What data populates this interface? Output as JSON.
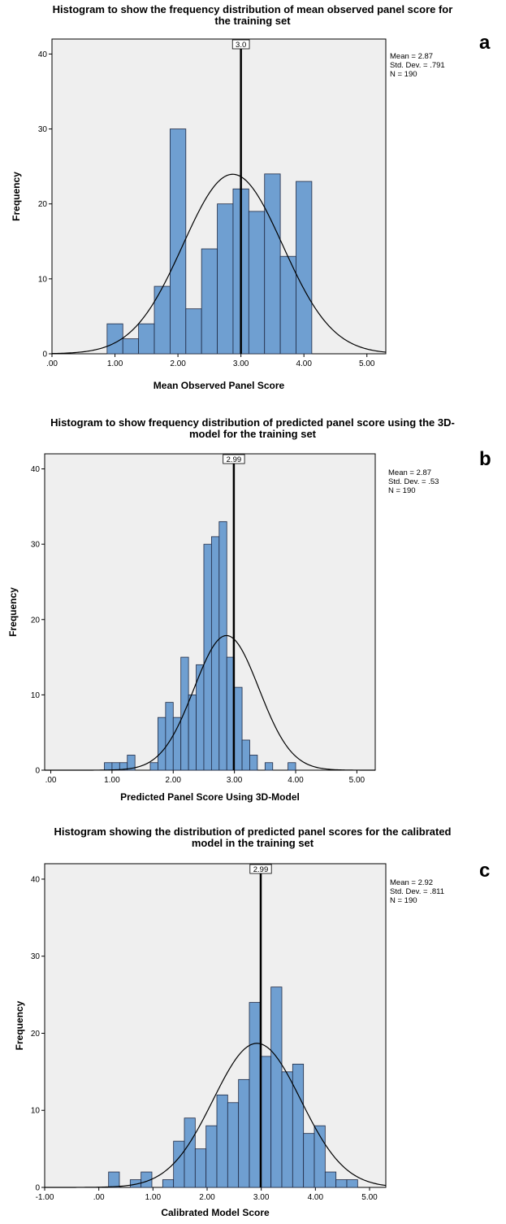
{
  "colors": {
    "bar_fill": "#6f9fd1",
    "bar_stroke": "#1f2a44",
    "plot_bg": "#efefef",
    "curve": "#000000",
    "mean_line": "#000000"
  },
  "chart_data": [
    {
      "type": "bar",
      "panel_label": "a",
      "title_lines": [
        "Histogram to show the frequency distribution of mean observed panel score for",
        "the training set"
      ],
      "xlabel": "Mean Observed Panel Score",
      "ylabel": "Frequency",
      "xlim": [
        0,
        5.3
      ],
      "ylim": [
        0,
        42
      ],
      "xticks": [
        0,
        1,
        2,
        3,
        4,
        5
      ],
      "xtick_labels": [
        ".00",
        "1.00",
        "2.00",
        "3.00",
        "4.00",
        "5.00"
      ],
      "yticks": [
        0,
        10,
        20,
        30,
        40
      ],
      "ytick_labels": [
        "0",
        "10",
        "20",
        "30",
        "40"
      ],
      "bin_edges": [
        0.875,
        1.125,
        1.375,
        1.625,
        1.875,
        2.125,
        2.375,
        2.625,
        2.875,
        3.125,
        3.375,
        3.625,
        3.875,
        4.125
      ],
      "values": [
        4,
        2,
        4,
        9,
        30,
        6,
        14,
        20,
        22,
        19,
        24,
        13,
        23
      ],
      "mean_line_x": 3.0,
      "mean_line_label": "3.0",
      "stats": [
        "Mean = 2.87",
        "Std. Dev. = .791",
        "N = 190"
      ],
      "normal_curve": {
        "mean": 2.87,
        "sd": 0.791,
        "n": 190,
        "binwidth": 0.25
      }
    },
    {
      "type": "bar",
      "panel_label": "b",
      "title_lines": [
        "Histogram to show frequency distribution of predicted panel score using the 3D-",
        "model for the training set"
      ],
      "xlabel": "Predicted Panel Score Using 3D-Model",
      "ylabel": "Frequency",
      "xlim": [
        -0.1,
        5.3
      ],
      "ylim": [
        0,
        42
      ],
      "xticks": [
        0,
        1,
        2,
        3,
        4,
        5
      ],
      "xtick_labels": [
        ".00",
        "1.00",
        "2.00",
        "3.00",
        "4.00",
        "5.00"
      ],
      "yticks": [
        0,
        10,
        20,
        30,
        40
      ],
      "ytick_labels": [
        "0",
        "10",
        "20",
        "30",
        "40"
      ],
      "bin_edges": [
        0.875,
        1.0,
        1.125,
        1.25,
        1.375,
        1.5,
        1.625,
        1.75,
        1.875,
        2.0,
        2.125,
        2.25,
        2.375,
        2.5,
        2.625,
        2.75,
        2.875,
        3.0,
        3.125,
        3.25,
        3.375,
        3.5,
        3.625,
        3.75,
        3.875,
        4.0
      ],
      "values": [
        1,
        1,
        1,
        2,
        0,
        0,
        1,
        7,
        9,
        7,
        15,
        10,
        14,
        30,
        31,
        33,
        15,
        11,
        4,
        2,
        0,
        1,
        0,
        0,
        1
      ],
      "mean_line_x": 2.99,
      "mean_line_label": "2.99",
      "stats": [
        "Mean = 2.87",
        "Std. Dev. = .53",
        "N = 190"
      ],
      "normal_curve": {
        "mean": 2.87,
        "sd": 0.53,
        "n": 190,
        "binwidth": 0.125
      }
    },
    {
      "type": "bar",
      "panel_label": "c",
      "title_lines": [
        "Histogram showing the distribution of predicted panel scores for the calibrated",
        "model in the training set"
      ],
      "xlabel": "Calibrated Model Score",
      "ylabel": "Frequency",
      "xlim": [
        -1.0,
        5.3
      ],
      "ylim": [
        0,
        42
      ],
      "xticks": [
        -1,
        0,
        1,
        2,
        3,
        4,
        5
      ],
      "xtick_labels": [
        "-1.00",
        ".00",
        "1.00",
        "2.00",
        "3.00",
        "4.00",
        "5.00"
      ],
      "yticks": [
        0,
        10,
        20,
        30,
        40
      ],
      "ytick_labels": [
        "0",
        "10",
        "20",
        "30",
        "40"
      ],
      "bin_edges": [
        0.18,
        0.38,
        0.58,
        0.78,
        0.98,
        1.18,
        1.38,
        1.58,
        1.78,
        1.98,
        2.18,
        2.38,
        2.58,
        2.78,
        2.98,
        3.18,
        3.38,
        3.58,
        3.78,
        3.98,
        4.18,
        4.38,
        4.58,
        4.78
      ],
      "values": [
        2,
        0,
        1,
        2,
        0,
        1,
        6,
        9,
        5,
        8,
        12,
        11,
        14,
        24,
        17,
        26,
        15,
        16,
        7,
        8,
        2,
        1,
        1
      ],
      "mean_line_x": 2.99,
      "mean_line_label": "2.99",
      "stats": [
        "Mean = 2.92",
        "Std. Dev. = .811",
        "N = 190"
      ],
      "normal_curve": {
        "mean": 2.92,
        "sd": 0.811,
        "n": 190,
        "binwidth": 0.2
      }
    }
  ]
}
